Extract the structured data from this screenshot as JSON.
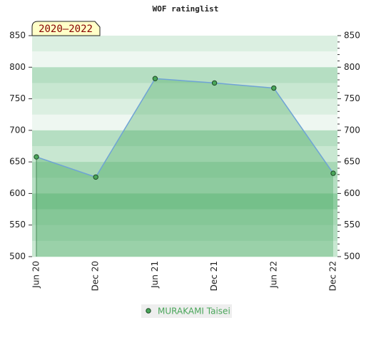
{
  "chart_data": {
    "type": "area",
    "title": "WOF ratinglist",
    "period_label": "2020–2022",
    "categories": [
      "Jun 20",
      "Dec 20",
      "Jun 21",
      "Dec 21",
      "Jun 22",
      "Dec 22"
    ],
    "series": [
      {
        "name": "MURAKAMI Taisei",
        "color": "#4aa65a",
        "values": [
          658,
          626,
          782,
          775,
          767,
          632
        ]
      }
    ],
    "ylim": [
      500,
      850
    ],
    "yticks": [
      500,
      550,
      600,
      650,
      700,
      750,
      800,
      850
    ]
  }
}
